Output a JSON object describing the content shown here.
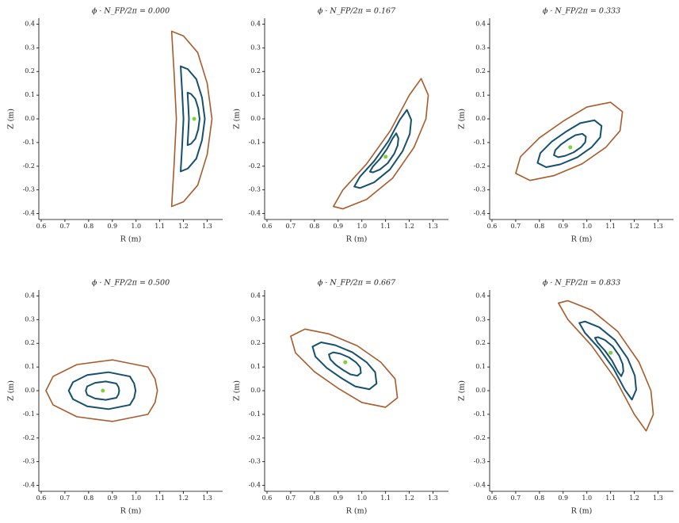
{
  "chart_data": [
    {
      "type": "line",
      "title": "ϕ · N_FP/2π = 0.000",
      "x_label": "R (m)",
      "y_label": "Z (m)",
      "xlim": [
        0.59,
        1.365
      ],
      "ylim": [
        -0.425,
        0.425
      ],
      "xticks": [
        0.6,
        0.7,
        0.8,
        0.9,
        {
          "value": 1.0,
          "label": "1.0"
        },
        1.1,
        1.2,
        1.3
      ],
      "yticks": [
        -0.4,
        -0.3,
        -0.2,
        -0.1,
        {
          "value": 0,
          "label": "0.0"
        },
        0.1,
        0.2,
        0.3,
        0.4
      ],
      "series": [
        {
          "color": "#a85a2a",
          "x": [
            1.15,
            1.2,
            1.26,
            1.3,
            1.32,
            1.3,
            1.26,
            1.2,
            1.15,
            1.16,
            1.17,
            1.16
          ],
          "values": [
            0.37,
            0.35,
            0.28,
            0.15,
            0,
            -0.15,
            -0.28,
            -0.35,
            -0.37,
            -0.2,
            0,
            0.2
          ]
        },
        {
          "color": "#15506f",
          "x": [
            1.188,
            1.218,
            1.254,
            1.278,
            1.29,
            1.278,
            1.254,
            1.218,
            1.188,
            1.194,
            1.2,
            1.194
          ],
          "values": [
            0.222,
            0.21,
            0.168,
            0.09,
            0,
            -0.09,
            -0.168,
            -0.21,
            -0.222,
            -0.12,
            0,
            0.12
          ]
        },
        {
          "color": "#15506f",
          "x": [
            1.217,
            1.232,
            1.25,
            1.262,
            1.268,
            1.262,
            1.25,
            1.232,
            1.217,
            1.22,
            1.223,
            1.22
          ],
          "values": [
            0.111,
            0.105,
            0.084,
            0.045,
            0,
            -0.045,
            -0.084,
            -0.105,
            -0.111,
            -0.06,
            0,
            0.06
          ]
        },
        {
          "color": "#7fd13b",
          "x": [
            1.245
          ],
          "values": [
            0
          ]
        }
      ]
    },
    {
      "type": "line",
      "title": "ϕ · N_FP/2π = 0.167",
      "x_label": "R (m)",
      "y_label": "Z (m)",
      "xlim": [
        0.59,
        1.365
      ],
      "ylim": [
        -0.425,
        0.425
      ],
      "xticks": [
        0.6,
        0.7,
        0.8,
        0.9,
        {
          "value": 1.0,
          "label": "1.0"
        },
        1.1,
        1.2,
        1.3
      ],
      "yticks": [
        -0.4,
        -0.3,
        -0.2,
        -0.1,
        {
          "value": 0,
          "label": "0.0"
        },
        0.1,
        0.2,
        0.3,
        0.4
      ],
      "series": [
        {
          "color": "#a85a2a",
          "x": [
            1.25,
            1.28,
            1.27,
            1.22,
            1.13,
            1.02,
            0.92,
            0.88,
            0.92,
            1.02,
            1.12,
            1.2
          ],
          "values": [
            0.17,
            0.1,
            0,
            -0.12,
            -0.25,
            -0.34,
            -0.38,
            -0.37,
            -0.3,
            -0.19,
            -0.05,
            0.1
          ]
        },
        {
          "color": "#15506f",
          "x": [
            1.19,
            1.208,
            1.202,
            1.172,
            1.118,
            1.052,
            0.992,
            0.968,
            0.992,
            1.052,
            1.112,
            1.16
          ],
          "values": [
            0.038,
            -0.004,
            -0.064,
            -0.136,
            -0.214,
            -0.268,
            -0.292,
            -0.286,
            -0.244,
            -0.178,
            -0.094,
            -0.004
          ]
        },
        {
          "color": "#15506f",
          "x": [
            1.145,
            1.154,
            1.151,
            1.136,
            1.109,
            1.076,
            1.046,
            1.034,
            1.046,
            1.076,
            1.106,
            1.13
          ],
          "values": [
            -0.061,
            -0.082,
            -0.112,
            -0.148,
            -0.187,
            -0.214,
            -0.226,
            -0.223,
            -0.202,
            -0.169,
            -0.127,
            -0.082
          ]
        },
        {
          "color": "#7fd13b",
          "x": [
            1.1
          ],
          "values": [
            -0.16
          ]
        }
      ]
    },
    {
      "type": "line",
      "title": "ϕ · N_FP/2π = 0.333",
      "x_label": "R (m)",
      "y_label": "Z (m)",
      "xlim": [
        0.59,
        1.365
      ],
      "ylim": [
        -0.425,
        0.425
      ],
      "xticks": [
        0.6,
        0.7,
        0.8,
        0.9,
        {
          "value": 1.0,
          "label": "1.0"
        },
        1.1,
        1.2,
        1.3
      ],
      "yticks": [
        -0.4,
        -0.3,
        -0.2,
        -0.1,
        {
          "value": 0,
          "label": "0.0"
        },
        0.1,
        0.2,
        0.3,
        0.4
      ],
      "series": [
        {
          "color": "#a85a2a",
          "x": [
            1.1,
            1.15,
            1.14,
            1.08,
            0.98,
            0.86,
            0.76,
            0.7,
            0.72,
            0.8,
            0.9,
            1.0
          ],
          "values": [
            0.07,
            0.03,
            -0.05,
            -0.12,
            -0.19,
            -0.24,
            -0.26,
            -0.23,
            -0.16,
            -0.08,
            -0.01,
            0.05
          ]
        },
        {
          "color": "#15506f",
          "x": [
            1.032,
            1.062,
            1.056,
            1.02,
            0.96,
            0.888,
            0.828,
            0.792,
            0.804,
            0.852,
            0.912,
            0.972
          ],
          "values": [
            -0.006,
            -0.03,
            -0.078,
            -0.12,
            -0.162,
            -0.192,
            -0.204,
            -0.186,
            -0.144,
            -0.096,
            -0.054,
            -0.018
          ]
        },
        {
          "color": "#15506f",
          "x": [
            0.981,
            0.996,
            0.993,
            0.975,
            0.945,
            0.909,
            0.879,
            0.861,
            0.867,
            0.891,
            0.921,
            0.951
          ],
          "values": [
            -0.063,
            -0.075,
            -0.099,
            -0.12,
            -0.141,
            -0.156,
            -0.162,
            -0.153,
            -0.132,
            -0.108,
            -0.087,
            -0.069
          ]
        },
        {
          "color": "#7fd13b",
          "x": [
            0.93
          ],
          "values": [
            -0.12
          ]
        }
      ]
    },
    {
      "type": "line",
      "title": "ϕ · N_FP/2π = 0.500",
      "x_label": "R (m)",
      "y_label": "Z (m)",
      "xlim": [
        0.59,
        1.365
      ],
      "ylim": [
        -0.425,
        0.425
      ],
      "xticks": [
        0.6,
        0.7,
        0.8,
        0.9,
        {
          "value": 1.0,
          "label": "1.0"
        },
        1.1,
        1.2,
        1.3
      ],
      "yticks": [
        -0.4,
        -0.3,
        -0.2,
        -0.1,
        {
          "value": 0,
          "label": "0.0"
        },
        0.1,
        0.2,
        0.3,
        0.4
      ],
      "series": [
        {
          "color": "#a85a2a",
          "x": [
            1.05,
            1.08,
            1.09,
            1.08,
            1.05,
            0.9,
            0.75,
            0.65,
            0.62,
            0.65,
            0.75,
            0.9
          ],
          "values": [
            0.1,
            0.05,
            0,
            -0.05,
            -0.1,
            -0.13,
            -0.11,
            -0.06,
            0,
            0.06,
            0.11,
            0.13
          ]
        },
        {
          "color": "#15506f",
          "x": [
            0.974,
            0.992,
            0.998,
            0.992,
            0.974,
            0.884,
            0.794,
            0.734,
            0.716,
            0.734,
            0.794,
            0.884
          ],
          "values": [
            0.06,
            0.03,
            0,
            -0.03,
            -0.06,
            -0.078,
            -0.066,
            -0.036,
            0,
            0.036,
            0.066,
            0.078
          ]
        },
        {
          "color": "#15506f",
          "x": [
            0.917,
            0.926,
            0.929,
            0.926,
            0.917,
            0.872,
            0.827,
            0.794,
            0.788,
            0.794,
            0.827,
            0.872
          ],
          "values": [
            0.03,
            0.015,
            0,
            -0.015,
            -0.03,
            -0.039,
            -0.033,
            -0.018,
            0,
            0.018,
            0.033,
            0.039
          ]
        },
        {
          "color": "#7fd13b",
          "x": [
            0.86
          ],
          "values": [
            0
          ]
        }
      ]
    },
    {
      "type": "line",
      "title": "ϕ · N_FP/2π = 0.667",
      "x_label": "R (m)",
      "y_label": "Z (m)",
      "xlim": [
        0.59,
        1.365
      ],
      "ylim": [
        -0.425,
        0.425
      ],
      "xticks": [
        0.6,
        0.7,
        0.8,
        0.9,
        {
          "value": 1.0,
          "label": "1.0"
        },
        1.1,
        1.2,
        1.3
      ],
      "yticks": [
        -0.4,
        -0.3,
        -0.2,
        -0.1,
        {
          "value": 0,
          "label": "0.0"
        },
        0.1,
        0.2,
        0.3,
        0.4
      ],
      "series": [
        {
          "color": "#a85a2a",
          "x": [
            1.1,
            1.15,
            1.14,
            1.08,
            0.98,
            0.86,
            0.76,
            0.7,
            0.72,
            0.8,
            0.9,
            1.0
          ],
          "values": [
            -0.07,
            -0.03,
            0.05,
            0.12,
            0.19,
            0.24,
            0.26,
            0.23,
            0.16,
            0.08,
            0.01,
            -0.05
          ]
        },
        {
          "color": "#15506f",
          "x": [
            1.032,
            1.062,
            1.056,
            1.02,
            0.96,
            0.888,
            0.828,
            0.792,
            0.804,
            0.852,
            0.912,
            0.972
          ],
          "values": [
            0.006,
            0.03,
            0.078,
            0.12,
            0.162,
            0.192,
            0.204,
            0.186,
            0.144,
            0.096,
            0.054,
            0.018
          ]
        },
        {
          "color": "#15506f",
          "x": [
            0.981,
            0.996,
            0.993,
            0.975,
            0.945,
            0.909,
            0.879,
            0.861,
            0.867,
            0.891,
            0.921,
            0.951
          ],
          "values": [
            0.063,
            0.075,
            0.099,
            0.12,
            0.141,
            0.156,
            0.162,
            0.153,
            0.132,
            0.108,
            0.087,
            0.069
          ]
        },
        {
          "color": "#7fd13b",
          "x": [
            0.93
          ],
          "values": [
            0.12
          ]
        }
      ]
    },
    {
      "type": "line",
      "title": "ϕ · N_FP/2π = 0.833",
      "x_label": "R (m)",
      "y_label": "Z (m)",
      "xlim": [
        0.59,
        1.365
      ],
      "ylim": [
        -0.425,
        0.425
      ],
      "xticks": [
        0.6,
        0.7,
        0.8,
        0.9,
        {
          "value": 1.0,
          "label": "1.0"
        },
        1.1,
        1.2,
        1.3
      ],
      "yticks": [
        -0.4,
        -0.3,
        -0.2,
        -0.1,
        {
          "value": 0,
          "label": "0.0"
        },
        0.1,
        0.2,
        0.3,
        0.4
      ],
      "series": [
        {
          "color": "#a85a2a",
          "x": [
            1.25,
            1.28,
            1.27,
            1.22,
            1.13,
            1.02,
            0.92,
            0.88,
            0.92,
            1.02,
            1.12,
            1.2
          ],
          "values": [
            -0.17,
            -0.1,
            0,
            0.12,
            0.25,
            0.34,
            0.38,
            0.37,
            0.3,
            0.19,
            0.05,
            -0.1
          ]
        },
        {
          "color": "#15506f",
          "x": [
            1.19,
            1.208,
            1.202,
            1.172,
            1.118,
            1.052,
            0.992,
            0.968,
            0.992,
            1.052,
            1.112,
            1.16
          ],
          "values": [
            -0.038,
            0.004,
            0.064,
            0.136,
            0.214,
            0.268,
            0.292,
            0.286,
            0.244,
            0.178,
            0.094,
            0.004
          ]
        },
        {
          "color": "#15506f",
          "x": [
            1.145,
            1.154,
            1.151,
            1.136,
            1.109,
            1.076,
            1.046,
            1.034,
            1.046,
            1.076,
            1.106,
            1.13
          ],
          "values": [
            0.061,
            0.082,
            0.112,
            0.148,
            0.187,
            0.214,
            0.226,
            0.223,
            0.202,
            0.169,
            0.127,
            0.082
          ]
        },
        {
          "color": "#7fd13b",
          "x": [
            1.1
          ],
          "values": [
            0.16
          ]
        }
      ]
    }
  ]
}
